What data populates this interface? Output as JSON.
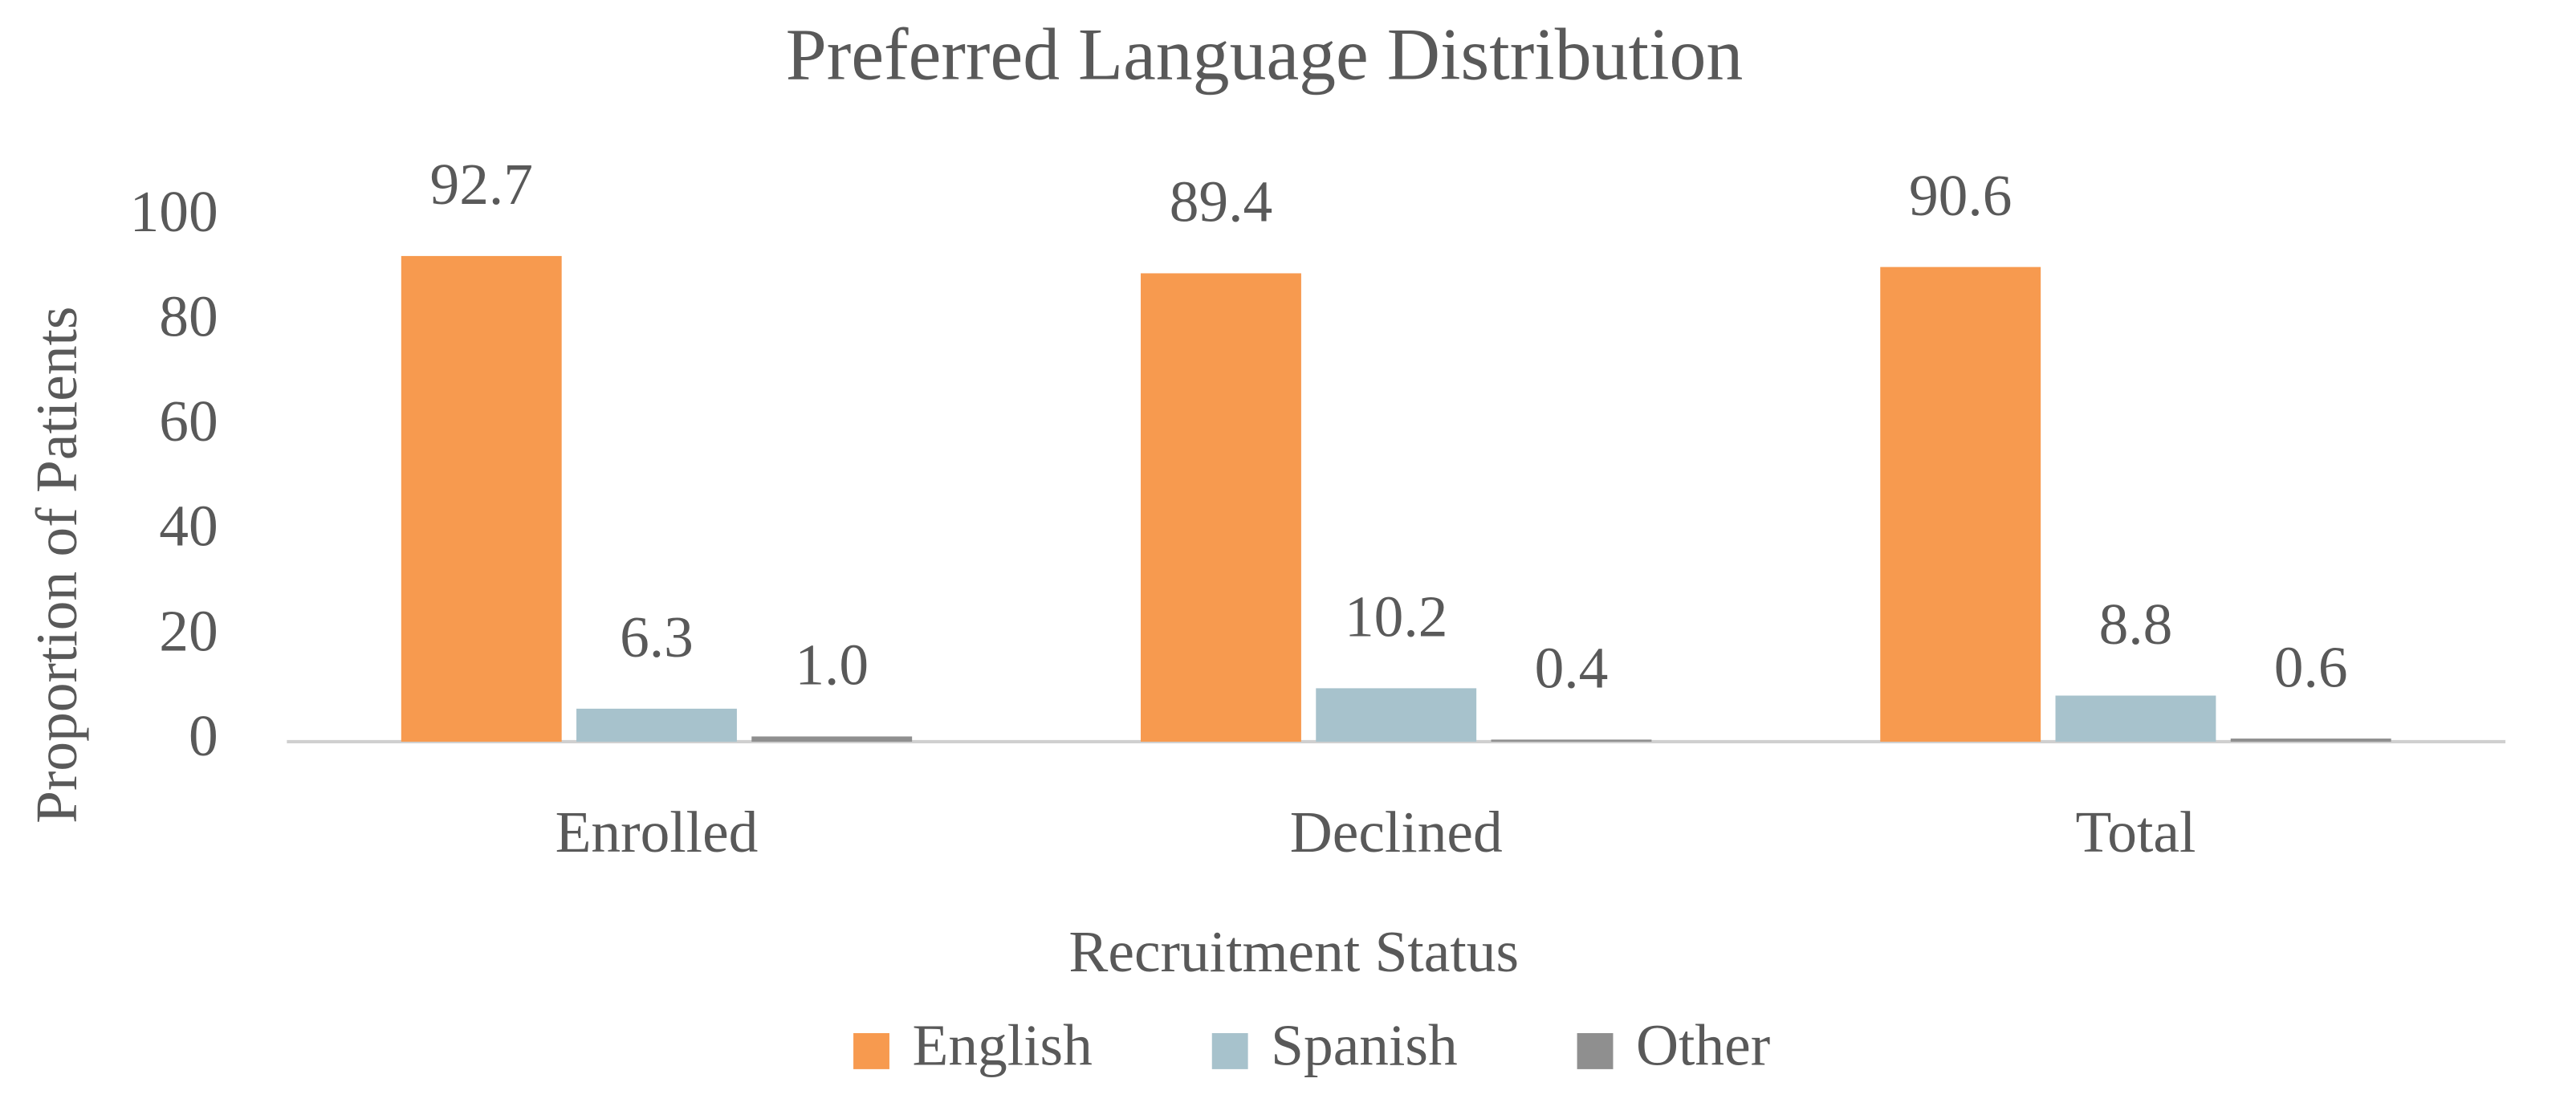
{
  "chart_data": {
    "type": "bar",
    "title": "Preferred Language Distribution",
    "x_label": "Recruitment Status",
    "y_label": "Proportion of Patients",
    "categories": [
      "Enrolled",
      "Declined",
      "Total"
    ],
    "series": [
      {
        "name": "English",
        "color": "#f79a4f",
        "values": [
          92.7,
          89.4,
          90.6
        ]
      },
      {
        "name": "Spanish",
        "color": "#a7c2cc",
        "values": [
          6.3,
          10.2,
          8.8
        ]
      },
      {
        "name": "Other",
        "color": "#8f8f8f",
        "values": [
          1.0,
          0.4,
          0.6
        ],
        "value_labels": [
          "1.0",
          "0.4",
          "0.6"
        ]
      }
    ],
    "ylim": [
      0,
      100
    ],
    "yticks": [
      0,
      20,
      40,
      60,
      80,
      100
    ],
    "grid": false,
    "legend": "bottom"
  }
}
